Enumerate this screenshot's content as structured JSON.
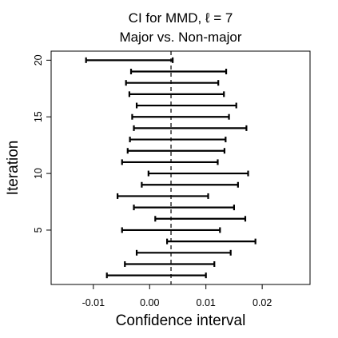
{
  "chart_data": {
    "type": "errorbar",
    "title": [
      "CI for MMD, ℓ = 7",
      "Major vs. Non-major"
    ],
    "xlabel": "Confidence interval",
    "ylabel": "Iteration",
    "xlim": [
      -0.0175,
      0.0285
    ],
    "ylim": [
      0.2,
      20.8
    ],
    "x_ticks": [
      -0.01,
      0.0,
      0.01,
      0.02
    ],
    "x_tick_labels": [
      "-0.01",
      "0.00",
      "0.01",
      "0.02"
    ],
    "y_ticks": [
      5,
      10,
      15,
      20
    ],
    "y_tick_labels": [
      "5",
      "10",
      "15",
      "20"
    ],
    "reference_line": 0.0038,
    "reference_line_style": "dashed",
    "grid": false,
    "legend": "none",
    "intervals": [
      {
        "iteration": 1,
        "lower": -0.0076,
        "upper": 0.01
      },
      {
        "iteration": 2,
        "lower": -0.0044,
        "upper": 0.0115
      },
      {
        "iteration": 3,
        "lower": -0.0023,
        "upper": 0.0144
      },
      {
        "iteration": 4,
        "lower": 0.0031,
        "upper": 0.0188
      },
      {
        "iteration": 5,
        "lower": -0.0049,
        "upper": 0.0125
      },
      {
        "iteration": 6,
        "lower": 0.001,
        "upper": 0.017
      },
      {
        "iteration": 7,
        "lower": -0.0028,
        "upper": 0.015
      },
      {
        "iteration": 8,
        "lower": -0.0057,
        "upper": 0.0104
      },
      {
        "iteration": 9,
        "lower": -0.0014,
        "upper": 0.0157
      },
      {
        "iteration": 10,
        "lower": -0.0002,
        "upper": 0.0175
      },
      {
        "iteration": 11,
        "lower": -0.0049,
        "upper": 0.0121
      },
      {
        "iteration": 12,
        "lower": -0.0039,
        "upper": 0.0133
      },
      {
        "iteration": 13,
        "lower": -0.0035,
        "upper": 0.0135
      },
      {
        "iteration": 14,
        "lower": -0.0028,
        "upper": 0.0172
      },
      {
        "iteration": 15,
        "lower": -0.0031,
        "upper": 0.0141
      },
      {
        "iteration": 16,
        "lower": -0.0023,
        "upper": 0.0154
      },
      {
        "iteration": 17,
        "lower": -0.0036,
        "upper": 0.0132
      },
      {
        "iteration": 18,
        "lower": -0.0042,
        "upper": 0.0122
      },
      {
        "iteration": 19,
        "lower": -0.0033,
        "upper": 0.0136
      },
      {
        "iteration": 20,
        "lower": -0.0113,
        "upper": 0.0041
      }
    ]
  }
}
